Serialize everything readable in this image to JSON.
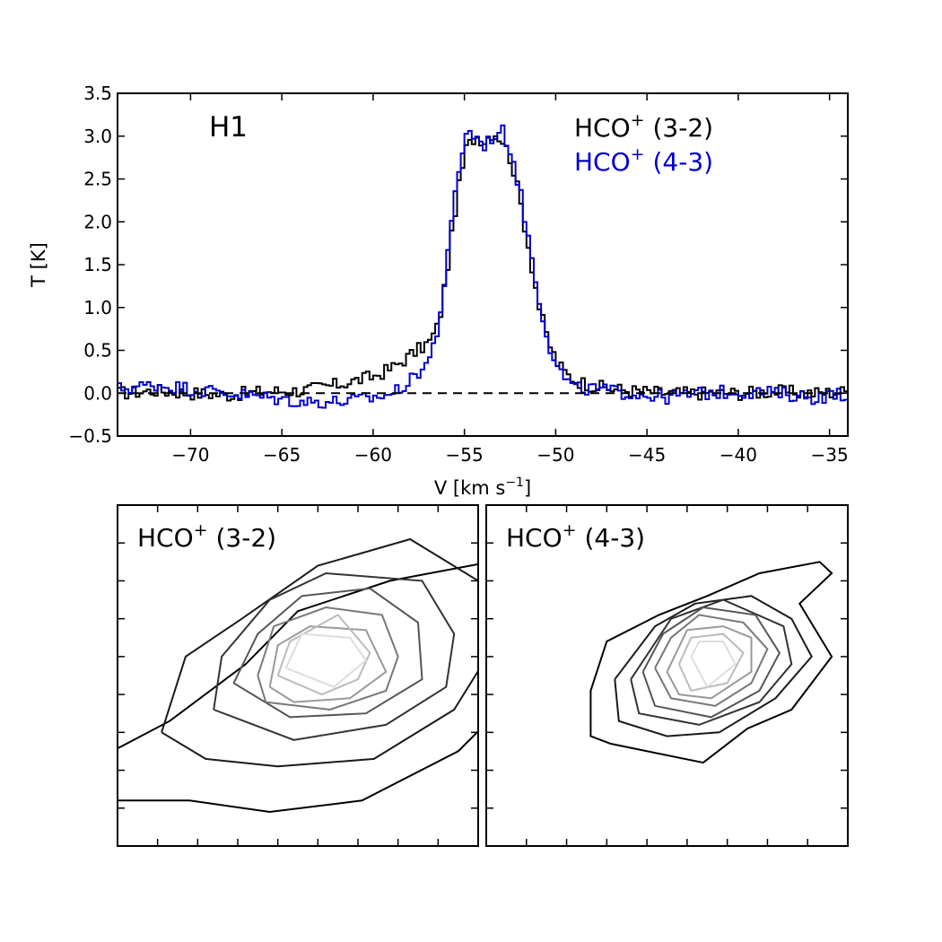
{
  "chart_data": [
    {
      "type": "line",
      "title": "H1",
      "xlabel_main": "V [km s",
      "xlabel_sup": "−1",
      "xlabel_end": "]",
      "ylabel": "T [K]",
      "xlim": [
        -74,
        -34
      ],
      "ylim": [
        -0.5,
        3.5
      ],
      "xticks": [
        -70,
        -65,
        -60,
        -55,
        -50,
        -45,
        -40,
        -35
      ],
      "xtick_labels": [
        "−70",
        "−65",
        "−60",
        "−55",
        "−50",
        "−45",
        "−40",
        "−35"
      ],
      "yticks": [
        -0.5,
        0.0,
        0.5,
        1.0,
        1.5,
        2.0,
        2.5,
        3.0,
        3.5
      ],
      "ytick_labels": [
        "−0.5",
        "0.0",
        "0.5",
        "1.0",
        "1.5",
        "2.0",
        "2.5",
        "3.0",
        "3.5"
      ],
      "baseline": 0.0,
      "series": [
        {
          "name": "HCO+ (3-2)",
          "legend_main": "HCO",
          "legend_sup": "+",
          "legend_rest": " (3-2)",
          "color": "#000000",
          "x": [
            -74,
            -72,
            -70,
            -68,
            -66,
            -64,
            -62,
            -61,
            -60,
            -59,
            -58,
            -57,
            -56.5,
            -56,
            -55.5,
            -55,
            -54.5,
            -54,
            -53.5,
            -53,
            -52.5,
            -52,
            -51.5,
            -51,
            -50.5,
            -50,
            -49.5,
            -49,
            -48,
            -47,
            -46,
            -44,
            -42,
            -40,
            -38,
            -36,
            -34
          ],
          "y": [
            0.0,
            0.03,
            0.0,
            -0.02,
            0.02,
            0.03,
            0.1,
            0.15,
            0.2,
            0.3,
            0.45,
            0.6,
            0.8,
            1.5,
            2.3,
            2.85,
            3.0,
            2.95,
            3.05,
            2.95,
            2.7,
            2.2,
            1.6,
            1.0,
            0.6,
            0.35,
            0.22,
            0.15,
            0.08,
            0.05,
            0.03,
            0.0,
            0.0,
            0.0,
            0.02,
            0.0,
            0.02
          ]
        },
        {
          "name": "HCO+ (4-3)",
          "legend_main": "HCO",
          "legend_sup": "+",
          "legend_rest": " (4-3)",
          "color": "#0000cc",
          "x": [
            -74,
            -72,
            -70,
            -68,
            -66,
            -64,
            -62,
            -61,
            -60,
            -59,
            -58,
            -57,
            -56.5,
            -56,
            -55.5,
            -55,
            -54.5,
            -54,
            -53.5,
            -53,
            -52.5,
            -52,
            -51.5,
            -51,
            -50.5,
            -50,
            -49.5,
            -49,
            -48,
            -47,
            -46,
            -44,
            -42,
            -40,
            -38,
            -36,
            -34
          ],
          "y": [
            0.05,
            0.1,
            0.05,
            0.0,
            -0.05,
            -0.1,
            -0.1,
            -0.08,
            -0.05,
            0.0,
            0.15,
            0.4,
            0.8,
            1.6,
            2.5,
            3.05,
            3.0,
            2.9,
            3.0,
            3.05,
            2.8,
            2.3,
            1.7,
            1.1,
            0.6,
            0.3,
            0.15,
            0.05,
            0.05,
            0.02,
            0.0,
            -0.05,
            0.0,
            0.02,
            0.0,
            -0.05,
            0.0
          ]
        }
      ]
    },
    {
      "type": "contour",
      "title_main": "HCO",
      "title_sup": "+",
      "title_rest": " (3-2)",
      "levels": [
        {
          "color": "#000000",
          "points": [
            [
              -0.5,
              2.3
            ],
            [
              1.3,
              3.3
            ],
            [
              3.2,
              4.8
            ],
            [
              4.5,
              6.2
            ],
            [
              6.8,
              7.0
            ],
            [
              9.3,
              7.5
            ],
            [
              10.4,
              5.7
            ],
            [
              10.4,
              4.5
            ],
            [
              8.5,
              2.5
            ],
            [
              6.1,
              1.2
            ],
            [
              3.8,
              0.9
            ],
            [
              1.8,
              1.2
            ],
            [
              0,
              1.2
            ],
            [
              -0.5,
              1.2
            ]
          ]
        },
        {
          "color": "#1a1a1a",
          "points": [
            [
              1.1,
              3.0
            ],
            [
              1.7,
              5.0
            ],
            [
              3.1,
              6.0
            ],
            [
              5.0,
              7.4
            ],
            [
              7.3,
              8.1
            ],
            [
              9.0,
              7.0
            ],
            [
              9.4,
              5.3
            ],
            [
              8.4,
              3.6
            ],
            [
              6.4,
              2.3
            ],
            [
              4.0,
              2.1
            ],
            [
              2.2,
              2.3
            ],
            [
              1.1,
              3.0
            ]
          ]
        },
        {
          "color": "#333333",
          "points": [
            [
              2.4,
              3.6
            ],
            [
              2.6,
              5.0
            ],
            [
              3.8,
              6.5
            ],
            [
              5.2,
              7.2
            ],
            [
              7.6,
              7.0
            ],
            [
              8.4,
              5.6
            ],
            [
              8.2,
              4.2
            ],
            [
              6.7,
              3.2
            ],
            [
              4.4,
              2.8
            ],
            [
              2.4,
              3.6
            ]
          ]
        },
        {
          "color": "#555555",
          "points": [
            [
              2.9,
              4.3
            ],
            [
              3.5,
              5.6
            ],
            [
              4.6,
              6.6
            ],
            [
              6.3,
              6.8
            ],
            [
              7.5,
              5.9
            ],
            [
              7.6,
              4.4
            ],
            [
              6.2,
              3.5
            ],
            [
              4.3,
              3.4
            ],
            [
              2.9,
              4.3
            ]
          ]
        },
        {
          "color": "#777777",
          "points": [
            [
              3.5,
              4.5
            ],
            [
              3.9,
              5.8
            ],
            [
              5.2,
              6.3
            ],
            [
              6.6,
              6.1
            ],
            [
              7.0,
              5.0
            ],
            [
              6.7,
              4.1
            ],
            [
              5.3,
              3.6
            ],
            [
              3.7,
              3.8
            ],
            [
              3.5,
              4.5
            ]
          ]
        },
        {
          "color": "#999999",
          "points": [
            [
              3.8,
              4.2
            ],
            [
              4.0,
              5.3
            ],
            [
              4.8,
              5.8
            ],
            [
              6.2,
              5.7
            ],
            [
              6.7,
              4.6
            ],
            [
              5.8,
              3.9
            ],
            [
              4.4,
              3.8
            ],
            [
              3.8,
              4.2
            ]
          ]
        },
        {
          "color": "#bbbbbb",
          "points": [
            [
              4.0,
              4.5
            ],
            [
              4.3,
              5.4
            ],
            [
              5.5,
              6.1
            ],
            [
              6.3,
              5.1
            ],
            [
              6.0,
              4.4
            ],
            [
              5.1,
              4.0
            ],
            [
              4.0,
              4.5
            ]
          ]
        },
        {
          "color": "#dddddd",
          "points": [
            [
              4.2,
              4.7
            ],
            [
              4.6,
              5.6
            ],
            [
              5.8,
              5.5
            ],
            [
              6.2,
              4.9
            ],
            [
              5.4,
              4.2
            ],
            [
              4.2,
              4.7
            ]
          ]
        }
      ]
    },
    {
      "type": "contour",
      "title_main": "HCO",
      "title_sup": "+",
      "title_rest": " (4-3)",
      "levels": [
        {
          "color": "#000000",
          "points": [
            [
              2.6,
              4.1
            ],
            [
              2.6,
              2.9
            ],
            [
              3.1,
              2.7
            ],
            [
              5.4,
              2.2
            ],
            [
              6.5,
              3.1
            ],
            [
              7.6,
              3.6
            ],
            [
              8.6,
              5.0
            ],
            [
              7.8,
              6.4
            ],
            [
              8.6,
              7.2
            ],
            [
              8.3,
              7.5
            ],
            [
              6.8,
              7.2
            ],
            [
              5.5,
              6.6
            ],
            [
              4.3,
              6.1
            ],
            [
              3.0,
              5.4
            ],
            [
              2.6,
              4.1
            ]
          ]
        },
        {
          "color": "#1a1a1a",
          "points": [
            [
              3.2,
              4.4
            ],
            [
              3.3,
              3.3
            ],
            [
              4.5,
              2.9
            ],
            [
              5.8,
              3.0
            ],
            [
              7.2,
              3.9
            ],
            [
              8.1,
              5.0
            ],
            [
              7.6,
              6.0
            ],
            [
              6.6,
              6.6
            ],
            [
              5.2,
              6.4
            ],
            [
              4.2,
              5.8
            ],
            [
              3.2,
              4.4
            ]
          ]
        },
        {
          "color": "#333333",
          "points": [
            [
              3.6,
              4.4
            ],
            [
              3.8,
              3.5
            ],
            [
              5.3,
              3.2
            ],
            [
              6.8,
              3.8
            ],
            [
              7.6,
              4.8
            ],
            [
              7.4,
              5.8
            ],
            [
              5.9,
              6.5
            ],
            [
              4.6,
              6.0
            ],
            [
              3.6,
              4.4
            ]
          ]
        },
        {
          "color": "#555555",
          "points": [
            [
              3.9,
              4.6
            ],
            [
              4.2,
              3.7
            ],
            [
              5.6,
              3.4
            ],
            [
              6.8,
              4.1
            ],
            [
              7.3,
              5.1
            ],
            [
              6.7,
              6.1
            ],
            [
              5.4,
              6.3
            ],
            [
              4.4,
              5.6
            ],
            [
              3.9,
              4.6
            ]
          ]
        },
        {
          "color": "#777777",
          "points": [
            [
              4.2,
              4.7
            ],
            [
              4.6,
              3.9
            ],
            [
              5.7,
              3.7
            ],
            [
              6.6,
              4.3
            ],
            [
              7.0,
              5.2
            ],
            [
              6.4,
              5.9
            ],
            [
              5.3,
              6.1
            ],
            [
              4.6,
              5.5
            ],
            [
              4.2,
              4.7
            ]
          ]
        },
        {
          "color": "#999999",
          "points": [
            [
              4.5,
              4.6
            ],
            [
              4.8,
              4.0
            ],
            [
              5.6,
              3.9
            ],
            [
              6.6,
              4.6
            ],
            [
              6.6,
              5.5
            ],
            [
              5.9,
              5.8
            ],
            [
              5.0,
              5.7
            ],
            [
              4.5,
              4.6
            ]
          ]
        },
        {
          "color": "#bbbbbb",
          "points": [
            [
              4.8,
              4.8
            ],
            [
              5.1,
              4.1
            ],
            [
              6.0,
              4.3
            ],
            [
              6.4,
              5.1
            ],
            [
              5.9,
              5.6
            ],
            [
              5.1,
              5.5
            ],
            [
              4.8,
              4.8
            ]
          ]
        },
        {
          "color": "#dddddd",
          "points": [
            [
              5.1,
              5.0
            ],
            [
              5.5,
              4.2
            ],
            [
              6.2,
              4.8
            ],
            [
              5.9,
              5.4
            ],
            [
              5.3,
              5.4
            ],
            [
              5.1,
              5.0
            ]
          ]
        }
      ]
    }
  ]
}
